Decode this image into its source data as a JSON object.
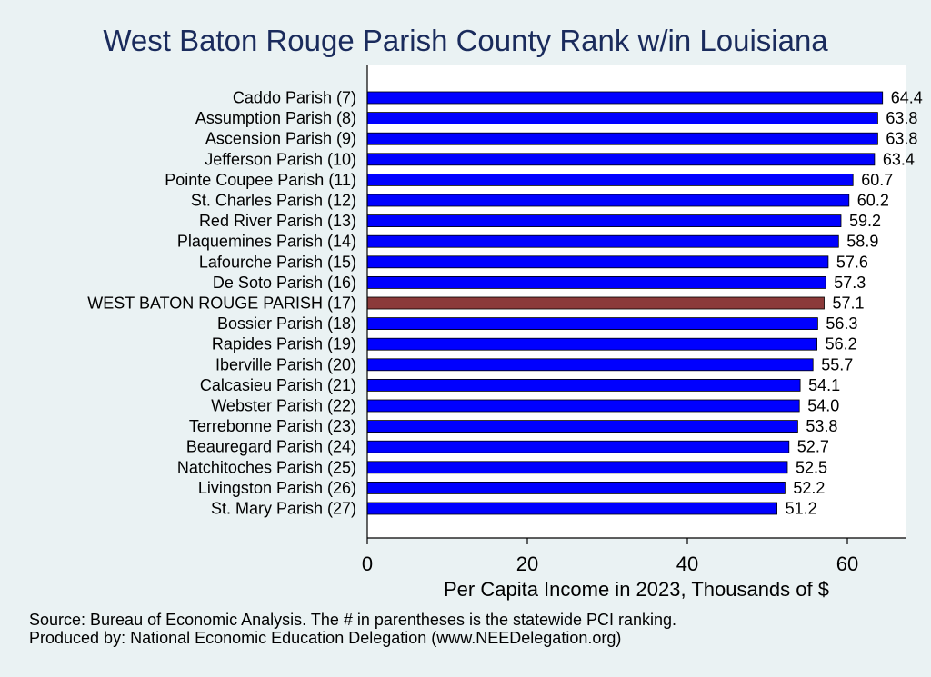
{
  "chart_data": {
    "type": "bar",
    "orientation": "horizontal",
    "title": "West Baton Rouge Parish County Rank w/in Louisiana",
    "xlabel": "Per Capita Income in 2023, Thousands of $",
    "ylabel": "",
    "xlim": [
      0,
      67.5
    ],
    "xticks": [
      0,
      20,
      40,
      60
    ],
    "grid": false,
    "categories": [
      "Caddo Parish  (7)",
      "Assumption Parish  (8)",
      "Ascension Parish  (9)",
      "Jefferson Parish (10)",
      "Pointe Coupee Parish (11)",
      "St. Charles Parish (12)",
      "Red River Parish (13)",
      "Plaquemines Parish (14)",
      "Lafourche Parish (15)",
      "De Soto Parish (16)",
      "WEST BATON ROUGE PARISH (17)",
      "Bossier Parish (18)",
      "Rapides Parish (19)",
      "Iberville Parish (20)",
      "Calcasieu Parish (21)",
      "Webster Parish (22)",
      "Terrebonne Parish (23)",
      "Beauregard Parish (24)",
      "Natchitoches Parish (25)",
      "Livingston Parish (26)",
      "St. Mary Parish (27)"
    ],
    "values": [
      64.4,
      63.8,
      63.8,
      63.4,
      60.7,
      60.2,
      59.2,
      58.9,
      57.6,
      57.3,
      57.1,
      56.3,
      56.2,
      55.7,
      54.1,
      54.0,
      53.8,
      52.7,
      52.5,
      52.2,
      51.2
    ],
    "value_labels": [
      "64.4",
      "63.8",
      "63.8",
      "63.4",
      "60.7",
      "60.2",
      "59.2",
      "58.9",
      "57.6",
      "57.3",
      "57.1",
      "56.3",
      "56.2",
      "55.7",
      "54.1",
      "54.0",
      "53.8",
      "52.7",
      "52.5",
      "52.2",
      "51.2"
    ],
    "highlight_index": 10,
    "colors": {
      "bar": "#0000ff",
      "highlight": "#8b3a3a",
      "plot_background": "#ffffff",
      "page_background": "#eaf2f3",
      "title": "#1a2b5c"
    }
  },
  "footer": {
    "source": "Source: Bureau of Economic Analysis. The # in parentheses is the statewide PCI ranking.",
    "producer": "Produced by: National Economic Education Delegation (www.NEEDelegation.org)"
  }
}
